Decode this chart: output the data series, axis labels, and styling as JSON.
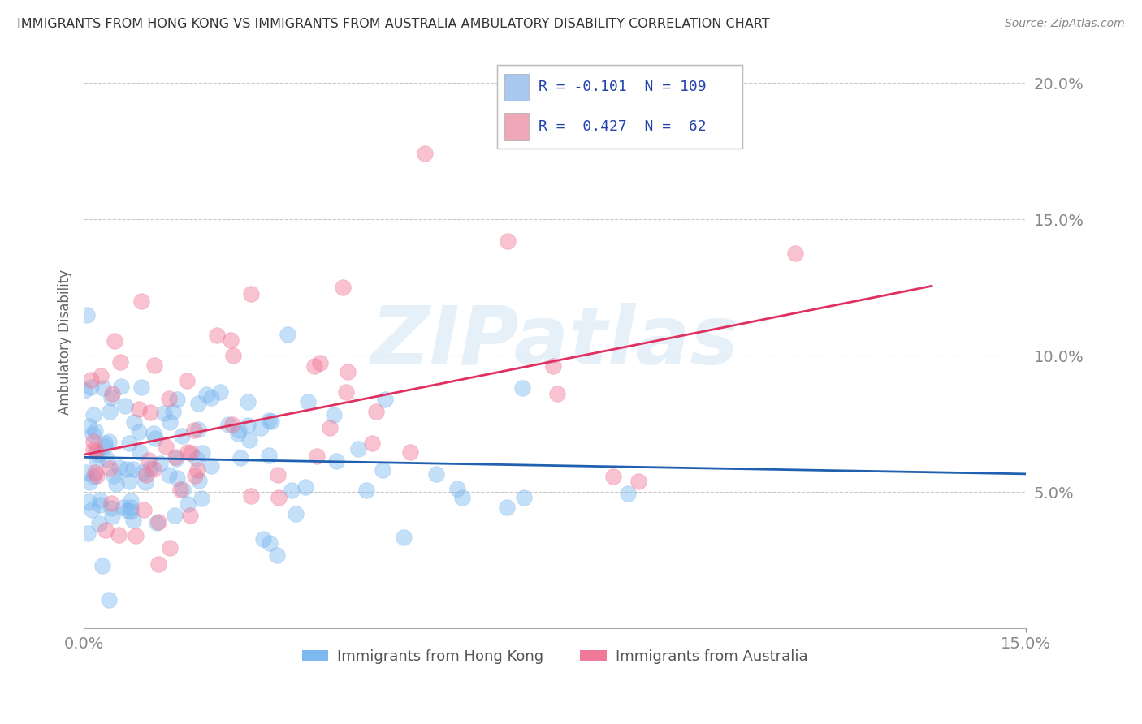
{
  "title": "IMMIGRANTS FROM HONG KONG VS IMMIGRANTS FROM AUSTRALIA AMBULATORY DISABILITY CORRELATION CHART",
  "source": "Source: ZipAtlas.com",
  "ylabel": "Ambulatory Disability",
  "legend_label1": "R = -0.101  N = 109",
  "legend_label2": "R =  0.427  N =  62",
  "legend_color1": "#a8c8f0",
  "legend_color2": "#f0a8b8",
  "dot_color1": "#7eb8f0",
  "dot_color2": "#f07898",
  "line_color1": "#2060b0",
  "line_color2": "#e03060",
  "R1": -0.101,
  "N1": 109,
  "R2": 0.427,
  "N2": 62,
  "xlim": [
    0.0,
    0.15
  ],
  "ylim": [
    0.0,
    0.21
  ],
  "yticks": [
    0.05,
    0.1,
    0.15,
    0.2
  ],
  "xticks": [
    0.0,
    0.15
  ],
  "watermark": "ZIPatlas",
  "legend_x1_label": "Immigrants from Hong Kong",
  "legend_x2_label": "Immigrants from Australia",
  "background_color": "#ffffff",
  "grid_color": "#bbbbbb",
  "tick_label_color": "#4488cc",
  "title_color": "#333333",
  "seed1": 42,
  "seed2": 77
}
